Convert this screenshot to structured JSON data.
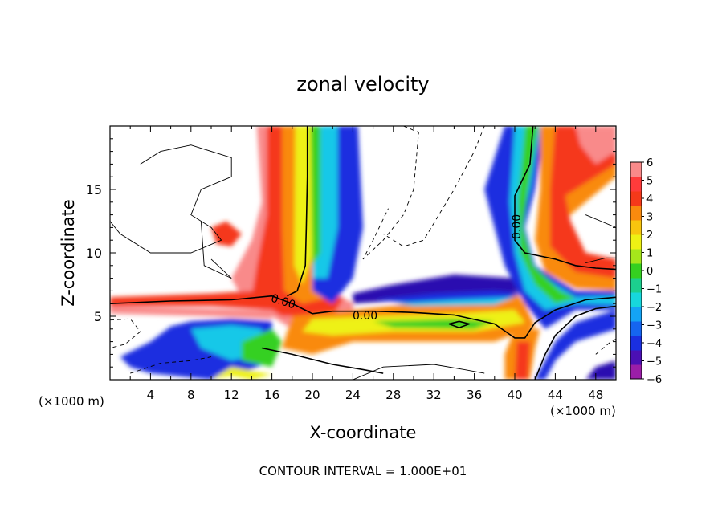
{
  "chart_data": {
    "type": "heatmap",
    "title": "zonal velocity",
    "xlabel": "X-coordinate",
    "ylabel": "Z-coordinate",
    "x_unit_label": "(×1000 m)",
    "x_unit_label_right": "(×1000 m)",
    "xlim": [
      0,
      50
    ],
    "ylim": [
      0,
      20
    ],
    "x_ticks": [
      "4",
      "8",
      "12",
      "16",
      "20",
      "24",
      "28",
      "32",
      "36",
      "40",
      "44",
      "48"
    ],
    "y_ticks": [
      "5",
      "10",
      "15"
    ],
    "colorbar": {
      "range": [
        -6,
        6
      ],
      "tick_labels": [
        "6",
        "5",
        "4",
        "3",
        "2",
        "1",
        "0",
        "−1",
        "−2",
        "−3",
        "−4",
        "−5",
        "−6"
      ],
      "colors": [
        "#9b1ea8",
        "#4b10b4",
        "#1a2fe0",
        "#1565f0",
        "#14a3f5",
        "#17d7dc",
        "#1ccf8e",
        "#35d020",
        "#a6e61b",
        "#eef114",
        "#f8c50e",
        "#f98a0e",
        "#f5391a",
        "#ff3b3b",
        "#f98a8a"
      ]
    },
    "contour_labels": [
      "0.00",
      "0.00",
      "0.00"
    ],
    "footer": "CONTOUR INTERVAL = 1.000E+01"
  },
  "colors": {
    "background": "#ffffff",
    "frame": "#000000"
  }
}
